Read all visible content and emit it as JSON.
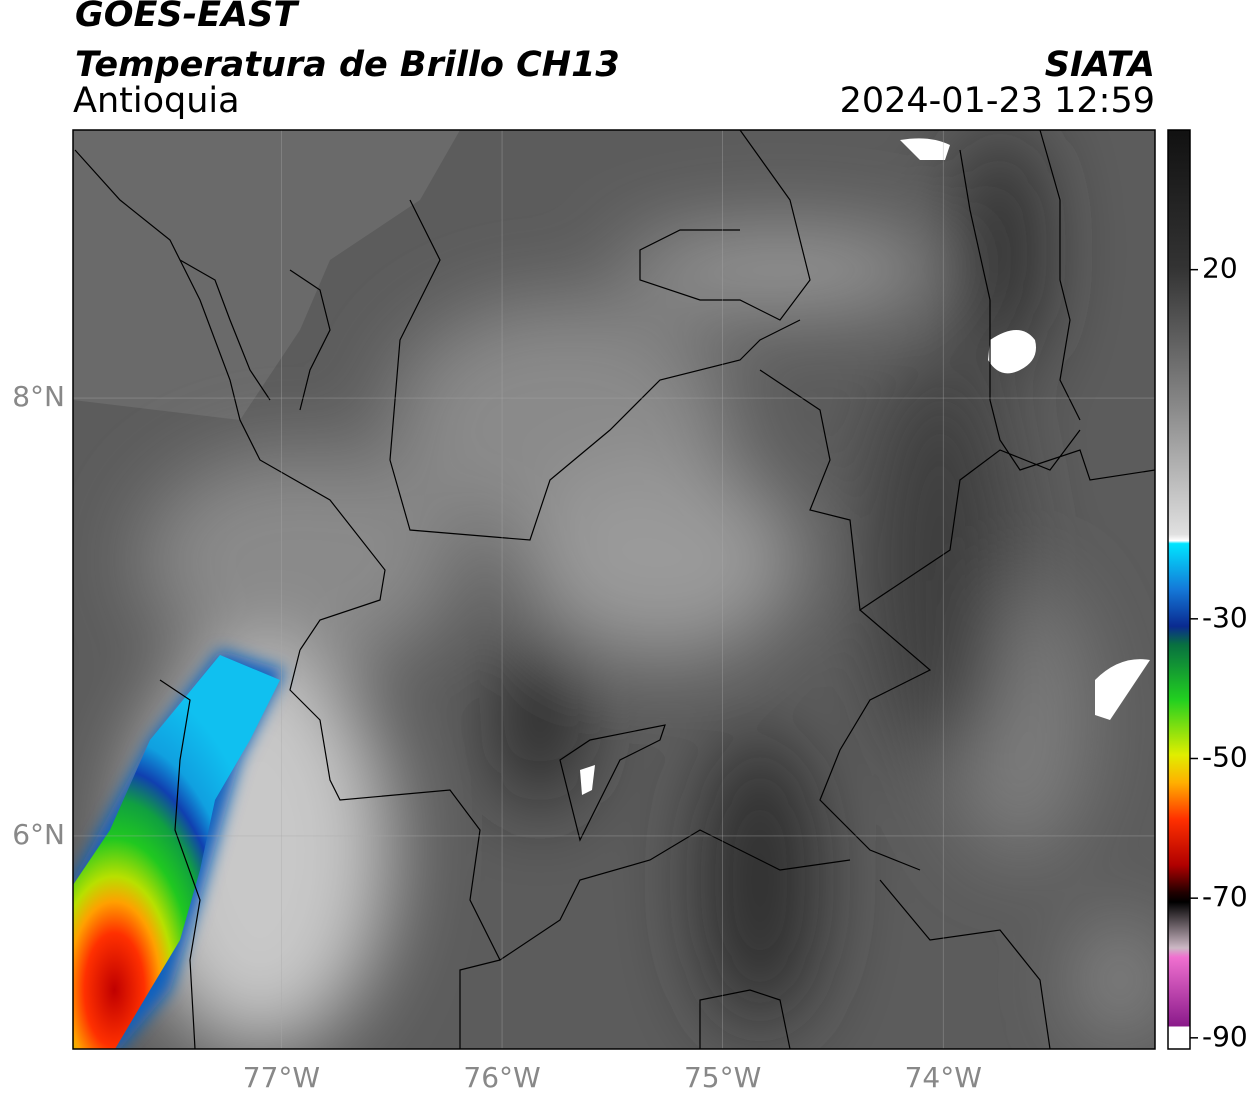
{
  "map": {
    "title": "GOES-EAST",
    "subtitle": "Temperatura de Brillo CH13",
    "region": "Antioquia",
    "source": "SIATA",
    "datetime": "2024-01-23 12:59",
    "xlim": [
      -77.945,
      -73.04
    ],
    "ylim": [
      5.027,
      9.224
    ],
    "xticks": [
      {
        "value": -77,
        "label": "77°W"
      },
      {
        "value": -76,
        "label": "76°W"
      },
      {
        "value": -75,
        "label": "75°W"
      },
      {
        "value": -74,
        "label": "74°W"
      }
    ],
    "yticks": [
      {
        "value": 8,
        "label": "8°N"
      },
      {
        "value": 6,
        "label": "6°N"
      }
    ],
    "grid": true,
    "colorbar": {
      "range": [
        -91.6,
        40
      ],
      "ticks": [
        20,
        -30,
        -50,
        -70,
        -90
      ]
    }
  }
}
